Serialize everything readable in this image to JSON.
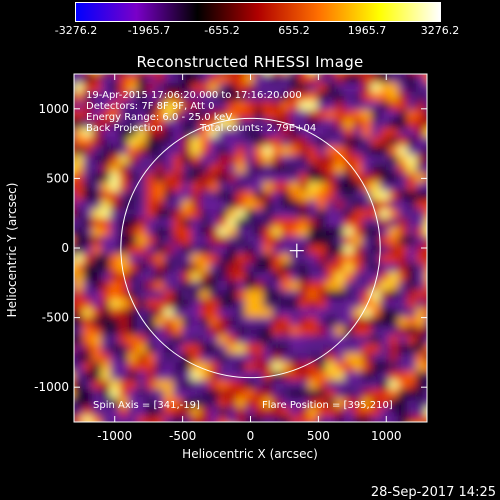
{
  "colorbar": {
    "ticks": [
      "-3276.2",
      "-1965.7",
      "-655.2",
      "655.2",
      "1965.7",
      "3276.2"
    ],
    "min": -3276.2,
    "max": 3276.2,
    "colors": [
      "#0000ff",
      "#7a00c8",
      "#000000",
      "#b00000",
      "#ff7000",
      "#ffff00",
      "#ffffff"
    ]
  },
  "chart_data": {
    "type": "heatmap",
    "title": "Reconstructed RHESSI Image",
    "xlabel": "Heliocentric X (arcsec)",
    "ylabel": "Heliocentric Y (arcsec)",
    "xlim": [
      -1300,
      1300
    ],
    "ylim": [
      -1250,
      1250
    ],
    "xticks": [
      -1000,
      -500,
      0,
      500,
      1000
    ],
    "yticks": [
      -1000,
      -500,
      0,
      500,
      1000
    ],
    "solar_disk_center": [
      0,
      0
    ],
    "solar_disk_radius_arcsec": 955,
    "flare_marker": [
      341,
      -19
    ],
    "annotations": {
      "line1": "19-Apr-2015 17:06:20.000 to 17:16:20.000",
      "line2": "Detectors: 7F 8F 9F, Att 0",
      "line3": "Energy Range: 6.0 - 25.0 keV",
      "line4_left": "Back Projection",
      "line4_right": "Total counts: 2.79E+04",
      "spin_axis": "Spin Axis = [341,-19]",
      "flare_position": "Flare Position = [395,210]"
    }
  },
  "timestamp": "28-Sep-2017 14:25"
}
